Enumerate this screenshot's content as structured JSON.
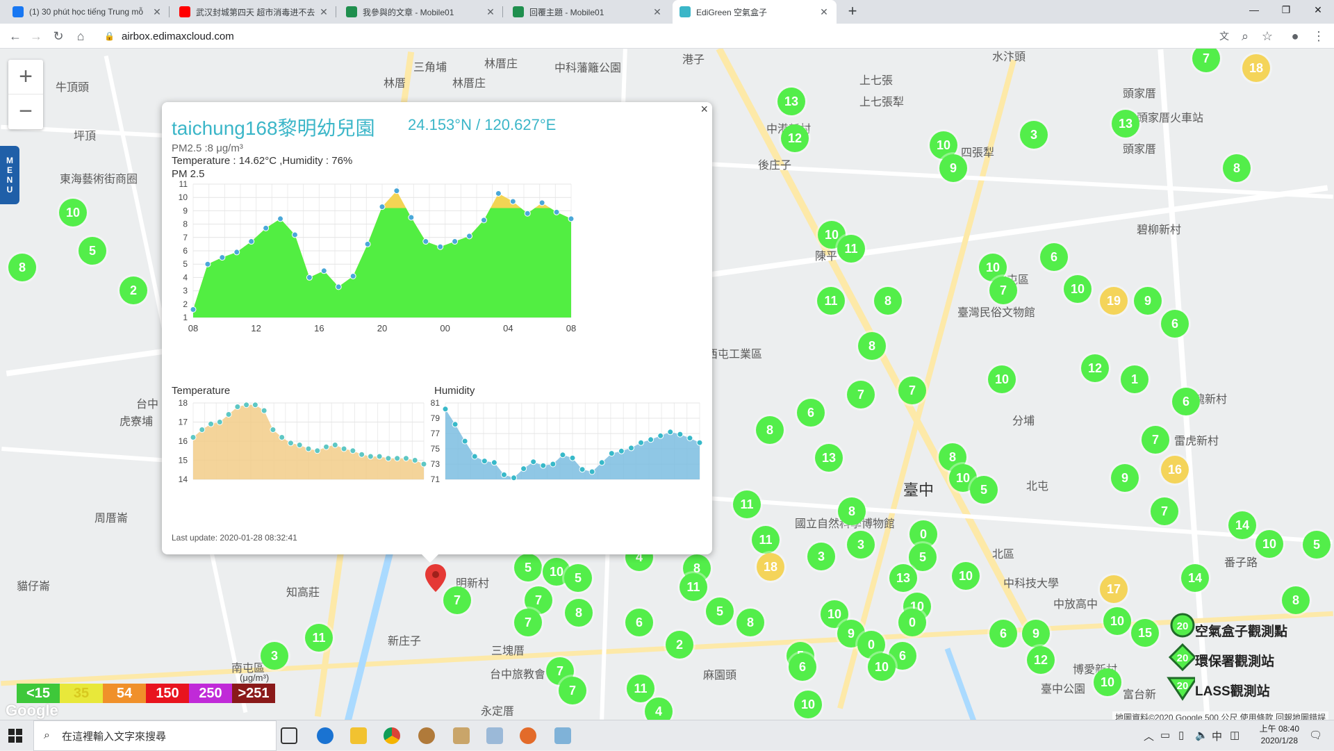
{
  "browser": {
    "tabs": [
      {
        "title": "(1) 30 phút học tiếng Trung mỗ",
        "favicon_color": "#1877f2"
      },
      {
        "title": "武汉封城第四天 超市消毒进不去",
        "favicon_color": "#ff0000"
      },
      {
        "title": "我參與的文章 - Mobile01",
        "favicon_color": "#1f8f4e"
      },
      {
        "title": "回覆主題 - Mobile01",
        "favicon_color": "#1f8f4e"
      },
      {
        "title": "EdiGreen 空氣盒子",
        "favicon_color": "#3bb6c8"
      }
    ],
    "active_tab": 4,
    "close_glyph": "✕",
    "new_tab_glyph": "+",
    "window_controls": [
      "—",
      "❐",
      "✕"
    ],
    "url": "airbox.edimaxcloud.com",
    "nav_icons": [
      "←",
      "→",
      "↻",
      "⌂"
    ],
    "right_icons": [
      "文",
      "⌕",
      "☆",
      "●",
      "⋮"
    ]
  },
  "map": {
    "zoom_in": "+",
    "zoom_out": "−",
    "menu_label": [
      "M",
      "E",
      "N",
      "U"
    ],
    "places": [
      {
        "t": "三角埔",
        "x": 595,
        "y": 95
      },
      {
        "t": "林厝庄",
        "x": 697,
        "y": 90
      },
      {
        "t": "林厝",
        "x": 552,
        "y": 118
      },
      {
        "t": "林厝庄",
        "x": 651,
        "y": 118
      },
      {
        "t": "中科藩籬公園",
        "x": 798,
        "y": 96
      },
      {
        "t": "港子",
        "x": 982,
        "y": 84
      },
      {
        "t": "牛頂頭",
        "x": 80,
        "y": 124
      },
      {
        "t": "坪頂",
        "x": 106,
        "y": 194
      },
      {
        "t": "東海藝術街商圈",
        "x": 86,
        "y": 256
      },
      {
        "t": "上七張",
        "x": 1237,
        "y": 114
      },
      {
        "t": "上七張犁",
        "x": 1237,
        "y": 145
      },
      {
        "t": "水汴頭",
        "x": 1428,
        "y": 80
      },
      {
        "t": "頭家厝",
        "x": 1616,
        "y": 133
      },
      {
        "t": "頭家厝火車站",
        "x": 1636,
        "y": 168
      },
      {
        "t": "頭家厝",
        "x": 1616,
        "y": 213
      },
      {
        "t": "中港新村",
        "x": 1103,
        "y": 184
      },
      {
        "t": "四張犁",
        "x": 1383,
        "y": 218
      },
      {
        "t": "後庄子",
        "x": 1091,
        "y": 236
      },
      {
        "t": "碧柳新村",
        "x": 1636,
        "y": 329
      },
      {
        "t": "陳平",
        "x": 1173,
        "y": 367
      },
      {
        "t": "北屯區",
        "x": 1433,
        "y": 401
      },
      {
        "t": "臺灣民俗文物館",
        "x": 1378,
        "y": 448
      },
      {
        "t": "西屯工業區",
        "x": 1017,
        "y": 508
      },
      {
        "t": "玫瑰新村",
        "x": 1702,
        "y": 573
      },
      {
        "t": "分埔",
        "x": 1457,
        "y": 604
      },
      {
        "t": "雷虎新村",
        "x": 1690,
        "y": 633
      },
      {
        "t": "台中",
        "x": 196,
        "y": 580
      },
      {
        "t": "虎寮埔",
        "x": 172,
        "y": 605
      },
      {
        "t": "臺中",
        "x": 1300,
        "y": 700
      },
      {
        "t": "北屯",
        "x": 1477,
        "y": 698
      },
      {
        "t": "周厝崙",
        "x": 136,
        "y": 744
      },
      {
        "t": "國立自然科學博物館",
        "x": 1144,
        "y": 752
      },
      {
        "t": "北區",
        "x": 1428,
        "y": 796
      },
      {
        "t": "番子路",
        "x": 1762,
        "y": 808
      },
      {
        "t": "貓仔崙",
        "x": 24,
        "y": 842
      },
      {
        "t": "知高莊",
        "x": 412,
        "y": 851
      },
      {
        "t": "明新村",
        "x": 656,
        "y": 838
      },
      {
        "t": "新庄子",
        "x": 558,
        "y": 921
      },
      {
        "t": "三塊厝",
        "x": 707,
        "y": 935
      },
      {
        "t": "南屯區",
        "x": 333,
        "y": 960
      },
      {
        "t": "台中旅教會",
        "x": 705,
        "y": 969
      },
      {
        "t": "麻園頭",
        "x": 1012,
        "y": 970
      },
      {
        "t": "永定厝",
        "x": 692,
        "y": 1022
      },
      {
        "t": "博愛新村",
        "x": 1544,
        "y": 962
      },
      {
        "t": "富台新",
        "x": 1616,
        "y": 998
      },
      {
        "t": "臺中公園",
        "x": 1498,
        "y": 990
      },
      {
        "t": "中科技大學",
        "x": 1444,
        "y": 838
      },
      {
        "t": "中放高中",
        "x": 1516,
        "y": 868
      }
    ],
    "markers": [
      {
        "v": "7",
        "x": 1736,
        "y": 84,
        "c": "g"
      },
      {
        "v": "18",
        "x": 1808,
        "y": 98,
        "c": "y"
      },
      {
        "v": "13",
        "x": 1139,
        "y": 146,
        "c": "g"
      },
      {
        "v": "12",
        "x": 1144,
        "y": 199,
        "c": "g"
      },
      {
        "v": "13",
        "x": 1620,
        "y": 178,
        "c": "g"
      },
      {
        "v": "3",
        "x": 1488,
        "y": 194,
        "c": "g"
      },
      {
        "v": "10",
        "x": 1358,
        "y": 209,
        "c": "g"
      },
      {
        "v": "9",
        "x": 1372,
        "y": 242,
        "c": "g"
      },
      {
        "v": "8",
        "x": 1780,
        "y": 242,
        "c": "g"
      },
      {
        "v": "10",
        "x": 105,
        "y": 306,
        "c": "g"
      },
      {
        "v": "5",
        "x": 133,
        "y": 361,
        "c": "g"
      },
      {
        "v": "8",
        "x": 32,
        "y": 385,
        "c": "g"
      },
      {
        "v": "2",
        "x": 192,
        "y": 418,
        "c": "g"
      },
      {
        "v": "10",
        "x": 1197,
        "y": 338,
        "c": "g"
      },
      {
        "v": "11",
        "x": 1225,
        "y": 358,
        "c": "g"
      },
      {
        "v": "6",
        "x": 1517,
        "y": 370,
        "c": "g"
      },
      {
        "v": "10",
        "x": 1429,
        "y": 385,
        "c": "g"
      },
      {
        "v": "7",
        "x": 1444,
        "y": 418,
        "c": "g"
      },
      {
        "v": "10",
        "x": 1551,
        "y": 416,
        "c": "g"
      },
      {
        "v": "19",
        "x": 1603,
        "y": 433,
        "c": "y"
      },
      {
        "v": "9",
        "x": 1652,
        "y": 433,
        "c": "g"
      },
      {
        "v": "6",
        "x": 1691,
        "y": 466,
        "c": "g"
      },
      {
        "v": "11",
        "x": 1196,
        "y": 433,
        "c": "g"
      },
      {
        "v": "8",
        "x": 1278,
        "y": 433,
        "c": "g"
      },
      {
        "v": "8",
        "x": 1255,
        "y": 498,
        "c": "g"
      },
      {
        "v": "10",
        "x": 1442,
        "y": 546,
        "c": "g"
      },
      {
        "v": "12",
        "x": 1576,
        "y": 530,
        "c": "g"
      },
      {
        "v": "1",
        "x": 1633,
        "y": 546,
        "c": "g"
      },
      {
        "v": "6",
        "x": 1707,
        "y": 578,
        "c": "g"
      },
      {
        "v": "6",
        "x": 1167,
        "y": 594,
        "c": "g"
      },
      {
        "v": "7",
        "x": 1239,
        "y": 568,
        "c": "g"
      },
      {
        "v": "7",
        "x": 1313,
        "y": 562,
        "c": "g"
      },
      {
        "v": "7",
        "x": 1663,
        "y": 633,
        "c": "g"
      },
      {
        "v": "8",
        "x": 1108,
        "y": 619,
        "c": "g"
      },
      {
        "v": "13",
        "x": 1193,
        "y": 659,
        "c": "g"
      },
      {
        "v": "8",
        "x": 1371,
        "y": 658,
        "c": "g"
      },
      {
        "v": "10",
        "x": 1386,
        "y": 688,
        "c": "g"
      },
      {
        "v": "5",
        "x": 1416,
        "y": 705,
        "c": "g"
      },
      {
        "v": "16",
        "x": 1691,
        "y": 676,
        "c": "y"
      },
      {
        "v": "9",
        "x": 1619,
        "y": 688,
        "c": "g"
      },
      {
        "v": "11",
        "x": 1075,
        "y": 726,
        "c": "g"
      },
      {
        "v": "8",
        "x": 1226,
        "y": 736,
        "c": "g"
      },
      {
        "v": "7",
        "x": 1676,
        "y": 736,
        "c": "g"
      },
      {
        "v": "11",
        "x": 1102,
        "y": 777,
        "c": "g"
      },
      {
        "v": "3",
        "x": 1239,
        "y": 784,
        "c": "g"
      },
      {
        "v": "0",
        "x": 1329,
        "y": 769,
        "c": "g"
      },
      {
        "v": "18",
        "x": 1109,
        "y": 816,
        "c": "y"
      },
      {
        "v": "3",
        "x": 1182,
        "y": 801,
        "c": "g"
      },
      {
        "v": "5",
        "x": 1328,
        "y": 802,
        "c": "g"
      },
      {
        "v": "10",
        "x": 1390,
        "y": 829,
        "c": "g"
      },
      {
        "v": "14",
        "x": 1788,
        "y": 756,
        "c": "g"
      },
      {
        "v": "10",
        "x": 1827,
        "y": 783,
        "c": "g"
      },
      {
        "v": "5",
        "x": 1895,
        "y": 784,
        "c": "g"
      },
      {
        "v": "13",
        "x": 1300,
        "y": 832,
        "c": "g"
      },
      {
        "v": "14",
        "x": 1720,
        "y": 832,
        "c": "g"
      },
      {
        "v": "17",
        "x": 1603,
        "y": 848,
        "c": "y"
      },
      {
        "v": "8",
        "x": 1865,
        "y": 864,
        "c": "g"
      },
      {
        "v": "10",
        "x": 1320,
        "y": 873,
        "c": "g"
      },
      {
        "v": "10",
        "x": 1608,
        "y": 894,
        "c": "g"
      },
      {
        "v": "15",
        "x": 1648,
        "y": 911,
        "c": "g"
      },
      {
        "v": "0",
        "x": 1313,
        "y": 896,
        "c": "g"
      },
      {
        "v": "10",
        "x": 1201,
        "y": 884,
        "c": "g"
      },
      {
        "v": "9",
        "x": 1225,
        "y": 912,
        "c": "g"
      },
      {
        "v": "0",
        "x": 1254,
        "y": 928,
        "c": "g"
      },
      {
        "v": "6",
        "x": 1444,
        "y": 912,
        "c": "g"
      },
      {
        "v": "9",
        "x": 1491,
        "y": 912,
        "c": "g"
      },
      {
        "v": "6",
        "x": 1299,
        "y": 944,
        "c": "g"
      },
      {
        "v": "10",
        "x": 1269,
        "y": 960,
        "c": "g"
      },
      {
        "v": "12",
        "x": 1498,
        "y": 950,
        "c": "g"
      },
      {
        "v": "10",
        "x": 1594,
        "y": 982,
        "c": "g"
      },
      {
        "v": "5",
        "x": 1152,
        "y": 944,
        "c": "g"
      },
      {
        "v": "6",
        "x": 1155,
        "y": 960,
        "c": "g"
      },
      {
        "v": "10",
        "x": 1163,
        "y": 1014,
        "c": "g"
      },
      {
        "v": "5",
        "x": 760,
        "y": 817,
        "c": "g"
      },
      {
        "v": "10",
        "x": 801,
        "y": 823,
        "c": "g"
      },
      {
        "v": "5",
        "x": 832,
        "y": 832,
        "c": "g"
      },
      {
        "v": "4",
        "x": 920,
        "y": 802,
        "c": "g"
      },
      {
        "v": "8",
        "x": 1003,
        "y": 818,
        "c": "g"
      },
      {
        "v": "11",
        "x": 998,
        "y": 845,
        "c": "g"
      },
      {
        "v": "7",
        "x": 775,
        "y": 864,
        "c": "g"
      },
      {
        "v": "8",
        "x": 833,
        "y": 882,
        "c": "g"
      },
      {
        "v": "7",
        "x": 760,
        "y": 896,
        "c": "g"
      },
      {
        "v": "6",
        "x": 920,
        "y": 896,
        "c": "g"
      },
      {
        "v": "5",
        "x": 1036,
        "y": 880,
        "c": "g"
      },
      {
        "v": "8",
        "x": 1080,
        "y": 896,
        "c": "g"
      },
      {
        "v": "2",
        "x": 978,
        "y": 928,
        "c": "g"
      },
      {
        "v": "7",
        "x": 806,
        "y": 966,
        "c": "g"
      },
      {
        "v": "7",
        "x": 824,
        "y": 994,
        "c": "g"
      },
      {
        "v": "11",
        "x": 922,
        "y": 991,
        "c": "g"
      },
      {
        "v": "4",
        "x": 948,
        "y": 1024,
        "c": "g"
      },
      {
        "v": "7",
        "x": 658,
        "y": 864,
        "c": "g"
      },
      {
        "v": "11",
        "x": 459,
        "y": 918,
        "c": "g"
      },
      {
        "v": "3",
        "x": 395,
        "y": 944,
        "c": "g"
      }
    ],
    "popup": {
      "close": "×",
      "station": "taichung168黎明幼兒園",
      "coords": "24.153°N / 120.627°E",
      "pm_line": "PM2.5 :8 μg/m³",
      "temp_line": "Temperature : 14.62°C ,Humidity : 76%",
      "pm_title": "PM 2.5",
      "temp_title": "Temperature",
      "hum_title": "Humidity",
      "last_update": "Last update: 2020-01-28 08:32:41"
    },
    "aq_scale": [
      {
        "t": "<15",
        "color": "#3ec83a"
      },
      {
        "t": "35",
        "color": "#e8e83a"
      },
      {
        "t": "54",
        "color": "#f0902a"
      },
      {
        "t": "150",
        "color": "#e8141e"
      },
      {
        "t": "250",
        "color": "#c02ad8"
      },
      {
        "t": ">251",
        "color": "#8a1a1a"
      }
    ],
    "aq_unit": "(μg/m³)",
    "google": "Google",
    "legend": [
      "空氣盒子觀測點",
      "環保署觀測站",
      "LASS觀測站"
    ],
    "legend_value": "20",
    "attribution": "地圖資料©2020 Google   500 公尺   使用條款   回報地圖錯誤"
  },
  "taskbar": {
    "search_placeholder": "在這裡輸入文字來搜尋",
    "time": "上午 08:40",
    "date": "2020/1/28",
    "ime": "中"
  },
  "chart_data": [
    {
      "type": "area",
      "title": "PM 2.5",
      "x_ticks": [
        "08",
        "12",
        "16",
        "20",
        "00",
        "04",
        "08"
      ],
      "ylim": [
        1,
        11
      ],
      "y_ticks": [
        1,
        2,
        3,
        4,
        5,
        6,
        7,
        8,
        9,
        10,
        11
      ],
      "values": [
        1.6,
        5.0,
        5.5,
        5.9,
        6.7,
        7.7,
        8.4,
        7.2,
        4.0,
        4.5,
        3.3,
        4.1,
        6.5,
        9.3,
        10.5,
        8.5,
        6.7,
        6.3,
        6.7,
        7.1,
        8.3,
        10.3,
        9.7,
        8.8,
        9.6,
        8.9,
        8.4
      ],
      "threshold": 9.2,
      "colors": {
        "under": "#52ee42",
        "over": "#f3d454"
      }
    },
    {
      "type": "area",
      "title": "Temperature",
      "ylim": [
        14,
        18
      ],
      "y_ticks": [
        14,
        15,
        16,
        17,
        18
      ],
      "values": [
        16.2,
        16.6,
        16.9,
        17.0,
        17.4,
        17.8,
        17.9,
        17.9,
        17.6,
        16.6,
        16.2,
        15.9,
        15.8,
        15.6,
        15.5,
        15.7,
        15.8,
        15.6,
        15.5,
        15.3,
        15.2,
        15.2,
        15.1,
        15.1,
        15.1,
        15.0,
        14.8
      ],
      "colors": {
        "fill": "#f2cc88",
        "line": "#5ec7c4"
      }
    },
    {
      "type": "area",
      "title": "Humidity",
      "ylim": [
        71,
        81
      ],
      "y_ticks": [
        71,
        73,
        75,
        77,
        79,
        81
      ],
      "values": [
        80.2,
        78.2,
        76.0,
        74.0,
        73.4,
        73.2,
        71.6,
        71.2,
        72.4,
        73.3,
        72.8,
        73.0,
        74.2,
        73.8,
        72.3,
        72.0,
        73.2,
        74.4,
        74.7,
        75.1,
        75.8,
        76.2,
        76.7,
        77.2,
        76.9,
        76.4,
        75.8
      ],
      "colors": {
        "fill": "#7bbde0",
        "line": "#38b9c9"
      }
    }
  ]
}
